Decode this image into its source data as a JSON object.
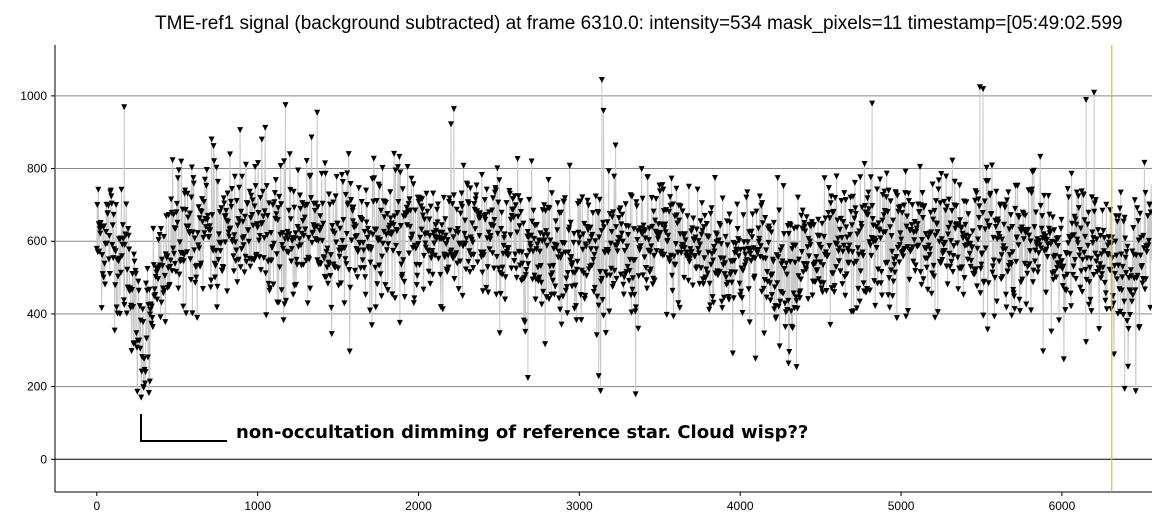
{
  "chart_data": {
    "type": "scatter",
    "title": "TME-ref1 signal (background subtracted) at frame 6310.0: intensity=534 mask_pixels=11 timestamp=[05:49:02.599",
    "xlabel": "",
    "ylabel": "",
    "xlim": [
      -260,
      6560
    ],
    "ylim": [
      -90,
      1140
    ],
    "x_ticks": [
      0,
      1000,
      2000,
      3000,
      4000,
      5000,
      6000
    ],
    "y_ticks": [
      0,
      200,
      400,
      600,
      800,
      1000
    ],
    "grid": "horizontal",
    "marker": "downward-triangle",
    "marker_color": "#000000",
    "connector_color": "#c8c8c8",
    "current_frame_line": {
      "x": 6310,
      "color": "#c8b860"
    },
    "series": [
      {
        "generator": {
          "x_start": 0,
          "x_end": 6560,
          "x_step": 3
        },
        "values": [
          [
            0,
            610
          ],
          [
            100,
            620
          ],
          [
            150,
            550
          ],
          [
            200,
            560
          ],
          [
            240,
            380
          ],
          [
            260,
            330
          ],
          [
            290,
            310
          ],
          [
            320,
            390
          ],
          [
            380,
            520
          ],
          [
            500,
            590
          ],
          [
            700,
            640
          ],
          [
            1000,
            630
          ],
          [
            1500,
            620
          ],
          [
            2000,
            620
          ],
          [
            2500,
            600
          ],
          [
            3000,
            580
          ],
          [
            3300,
            560
          ],
          [
            3500,
            600
          ],
          [
            4000,
            560
          ],
          [
            4300,
            545
          ],
          [
            4600,
            555
          ],
          [
            4800,
            610
          ],
          [
            5000,
            600
          ],
          [
            5500,
            610
          ],
          [
            6000,
            575
          ],
          [
            6300,
            570
          ],
          [
            6400,
            520
          ],
          [
            6560,
            590
          ]
        ],
        "noise_sd": 95,
        "outliers": [
          [
            170,
            970
          ],
          [
            290,
            200
          ],
          [
            330,
            215
          ],
          [
            1370,
            955
          ],
          [
            2220,
            965
          ],
          [
            3140,
            1045
          ],
          [
            3150,
            960
          ],
          [
            3350,
            180
          ],
          [
            3120,
            230
          ],
          [
            5490,
            1025
          ],
          [
            5510,
            1020
          ],
          [
            6150,
            990
          ],
          [
            6200,
            1010
          ],
          [
            4820,
            980
          ],
          [
            6390,
            195
          ],
          [
            4300,
            265
          ],
          [
            4350,
            255
          ],
          [
            2680,
            225
          ]
        ]
      }
    ]
  },
  "annotation": {
    "text": "non-occultation dimming of reference star. Cloud wisp??"
  }
}
